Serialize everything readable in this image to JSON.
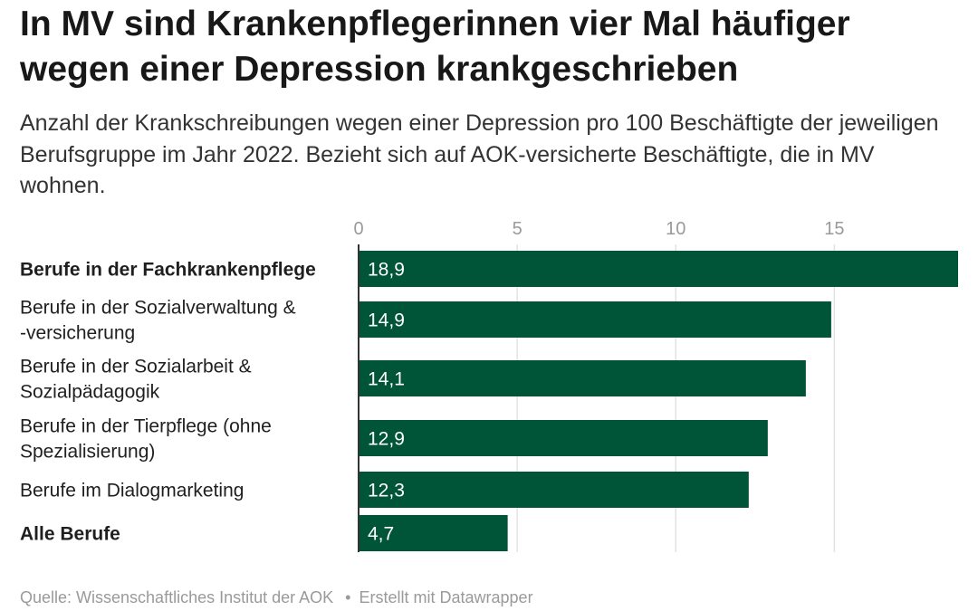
{
  "header": {
    "title": "In MV sind Krankenpflegerinnen vier Mal häufiger wegen einer Depression krankgeschrieben",
    "subtitle": "Anzahl der Krankschreibungen wegen einer Depression pro 100 Beschäftigte der jeweiligen Berufsgruppe im Jahr 2022. Bezieht sich auf AOK-versicherte Beschäftigte, die in MV wohnen."
  },
  "chart_data": {
    "type": "bar",
    "orientation": "horizontal",
    "categories": [
      "Berufe in der Fachkrankenpflege",
      "Berufe in der Sozialverwaltung & -versicherung",
      "Berufe in der Sozialarbeit & Sozialpädagogik",
      "Berufe in der Tierpflege (ohne Spezialisierung)",
      "Berufe im Dialogmarketing",
      "Alle Berufe"
    ],
    "bold_categories": [
      "Berufe in der Fachkrankenpflege",
      "Alle Berufe"
    ],
    "values": [
      18.9,
      14.9,
      14.1,
      12.9,
      12.3,
      4.7
    ],
    "value_labels": [
      "18,9",
      "14,9",
      "14,1",
      "12,9",
      "12,3",
      "4,7"
    ],
    "xticks": [
      0,
      5,
      10,
      15
    ],
    "xtick_labels": [
      "0",
      "5",
      "10",
      "15"
    ],
    "xlim": [
      0,
      18.9
    ],
    "grid": true,
    "bar_color": "#005538",
    "title": "In MV sind Krankenpflegerinnen vier Mal häufiger wegen einer Depression krankgeschrieben"
  },
  "footer": {
    "source": "Quelle: Wissenschaftliches Institut der AOK",
    "separator": "•",
    "credit": "Erstellt mit Datawrapper"
  }
}
